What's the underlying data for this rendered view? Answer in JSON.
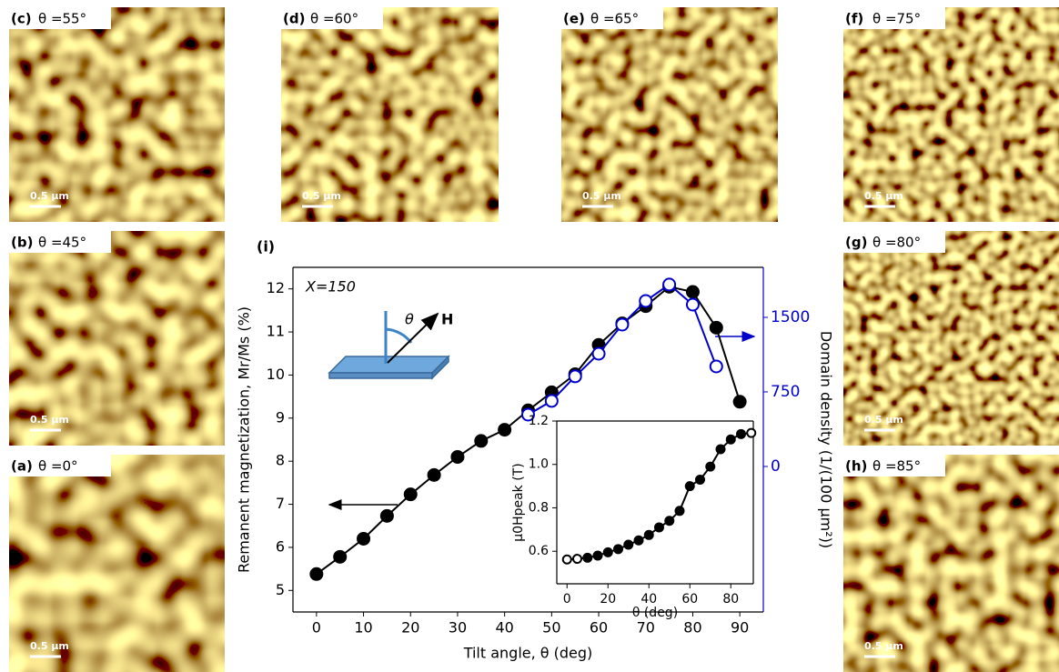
{
  "panels": [
    {
      "tag": "(a)",
      "caption": "θ =0°",
      "scale_bar": "0.5 μm"
    },
    {
      "tag": "(b)",
      "caption": "θ =45°",
      "scale_bar": "0.5 μm"
    },
    {
      "tag": "(c)",
      "caption": "θ =55°",
      "scale_bar": "0.5 μm"
    },
    {
      "tag": "(d)",
      "caption": "θ =60°",
      "scale_bar": "0.5 μm"
    },
    {
      "tag": "(e)",
      "caption": "θ =65°",
      "scale_bar": "0.5 μm"
    },
    {
      "tag": "(f)",
      "caption": "θ =75°",
      "scale_bar": "0.5 μm"
    },
    {
      "tag": "(g)",
      "caption": "θ =80°",
      "scale_bar": "0.5 μm"
    },
    {
      "tag": "(h)",
      "caption": "θ =85°",
      "scale_bar": "0.5 μm"
    }
  ],
  "chart_data": [
    {
      "type": "line",
      "label": "(i)",
      "annotations": [
        "X=150",
        "θ",
        "H"
      ],
      "xlabel": "Tilt angle, θ (deg)",
      "ylabel": "Remanent magnetization, Mr/Ms (%)",
      "y2label": "Domain density (1/(100 μm²))",
      "xlim": [
        -5,
        95
      ],
      "xticks": [
        0,
        10,
        20,
        30,
        40,
        50,
        60,
        70,
        80,
        90
      ],
      "ylim": [
        4.5,
        12.5
      ],
      "yticks": [
        5,
        6,
        7,
        8,
        9,
        10,
        11,
        12
      ],
      "y2lim": [
        -1464,
        2003
      ],
      "y2ticks": [
        0,
        750,
        1500
      ],
      "y2color": "#0000cc",
      "series": [
        {
          "x": [
            0,
            5,
            10,
            15,
            20,
            25,
            30,
            35,
            40,
            45,
            50,
            55,
            60,
            65,
            70,
            75,
            80,
            85,
            90
          ],
          "values": [
            5.38,
            5.78,
            6.2,
            6.73,
            7.23,
            7.68,
            8.1,
            8.47,
            8.73,
            9.18,
            9.6,
            10.02,
            10.7,
            11.2,
            11.6,
            12.05,
            11.93,
            11.1,
            9.38
          ],
          "color": "#000000",
          "marker_fill": "#000000"
        },
        {
          "x": [
            45,
            50,
            55,
            60,
            65,
            70,
            75,
            80,
            85
          ],
          "values": [
            521,
            659,
            906,
            1134,
            1427,
            1665,
            1830,
            1628,
            1006
          ],
          "color": "#0000cc",
          "marker_fill": "#ffffff",
          "axis": "y2"
        }
      ]
    },
    {
      "type": "line",
      "xlabel": "θ (deg)",
      "ylabel": "μ0Hpeak (T)",
      "xlim": [
        -5,
        91
      ],
      "xticks": [
        0,
        20,
        40,
        60,
        80
      ],
      "ylim": [
        0.45,
        1.2
      ],
      "yticks": [
        0.6,
        0.8,
        {
          "value": 1,
          "label": "1.0"
        },
        1.2
      ],
      "series": [
        {
          "x": [
            0,
            5,
            10,
            15,
            20,
            25,
            30,
            35,
            40,
            45,
            50,
            55,
            60,
            65,
            70,
            75,
            80,
            85,
            90
          ],
          "values": [
            0.562,
            0.565,
            0.57,
            0.58,
            0.595,
            0.61,
            0.63,
            0.65,
            0.675,
            0.71,
            0.74,
            0.786,
            0.9,
            0.93,
            0.99,
            1.07,
            1.115,
            1.14,
            1.145
          ],
          "color": "#000000",
          "marker_fill": [
            "#ffffff",
            "#ffffff",
            "#000000",
            "#000000",
            "#000000",
            "#000000",
            "#000000",
            "#000000",
            "#000000",
            "#000000",
            "#000000",
            "#000000",
            "#000000",
            "#000000",
            "#000000",
            "#000000",
            "#000000",
            "#000000",
            "#ffffff"
          ]
        }
      ]
    }
  ]
}
